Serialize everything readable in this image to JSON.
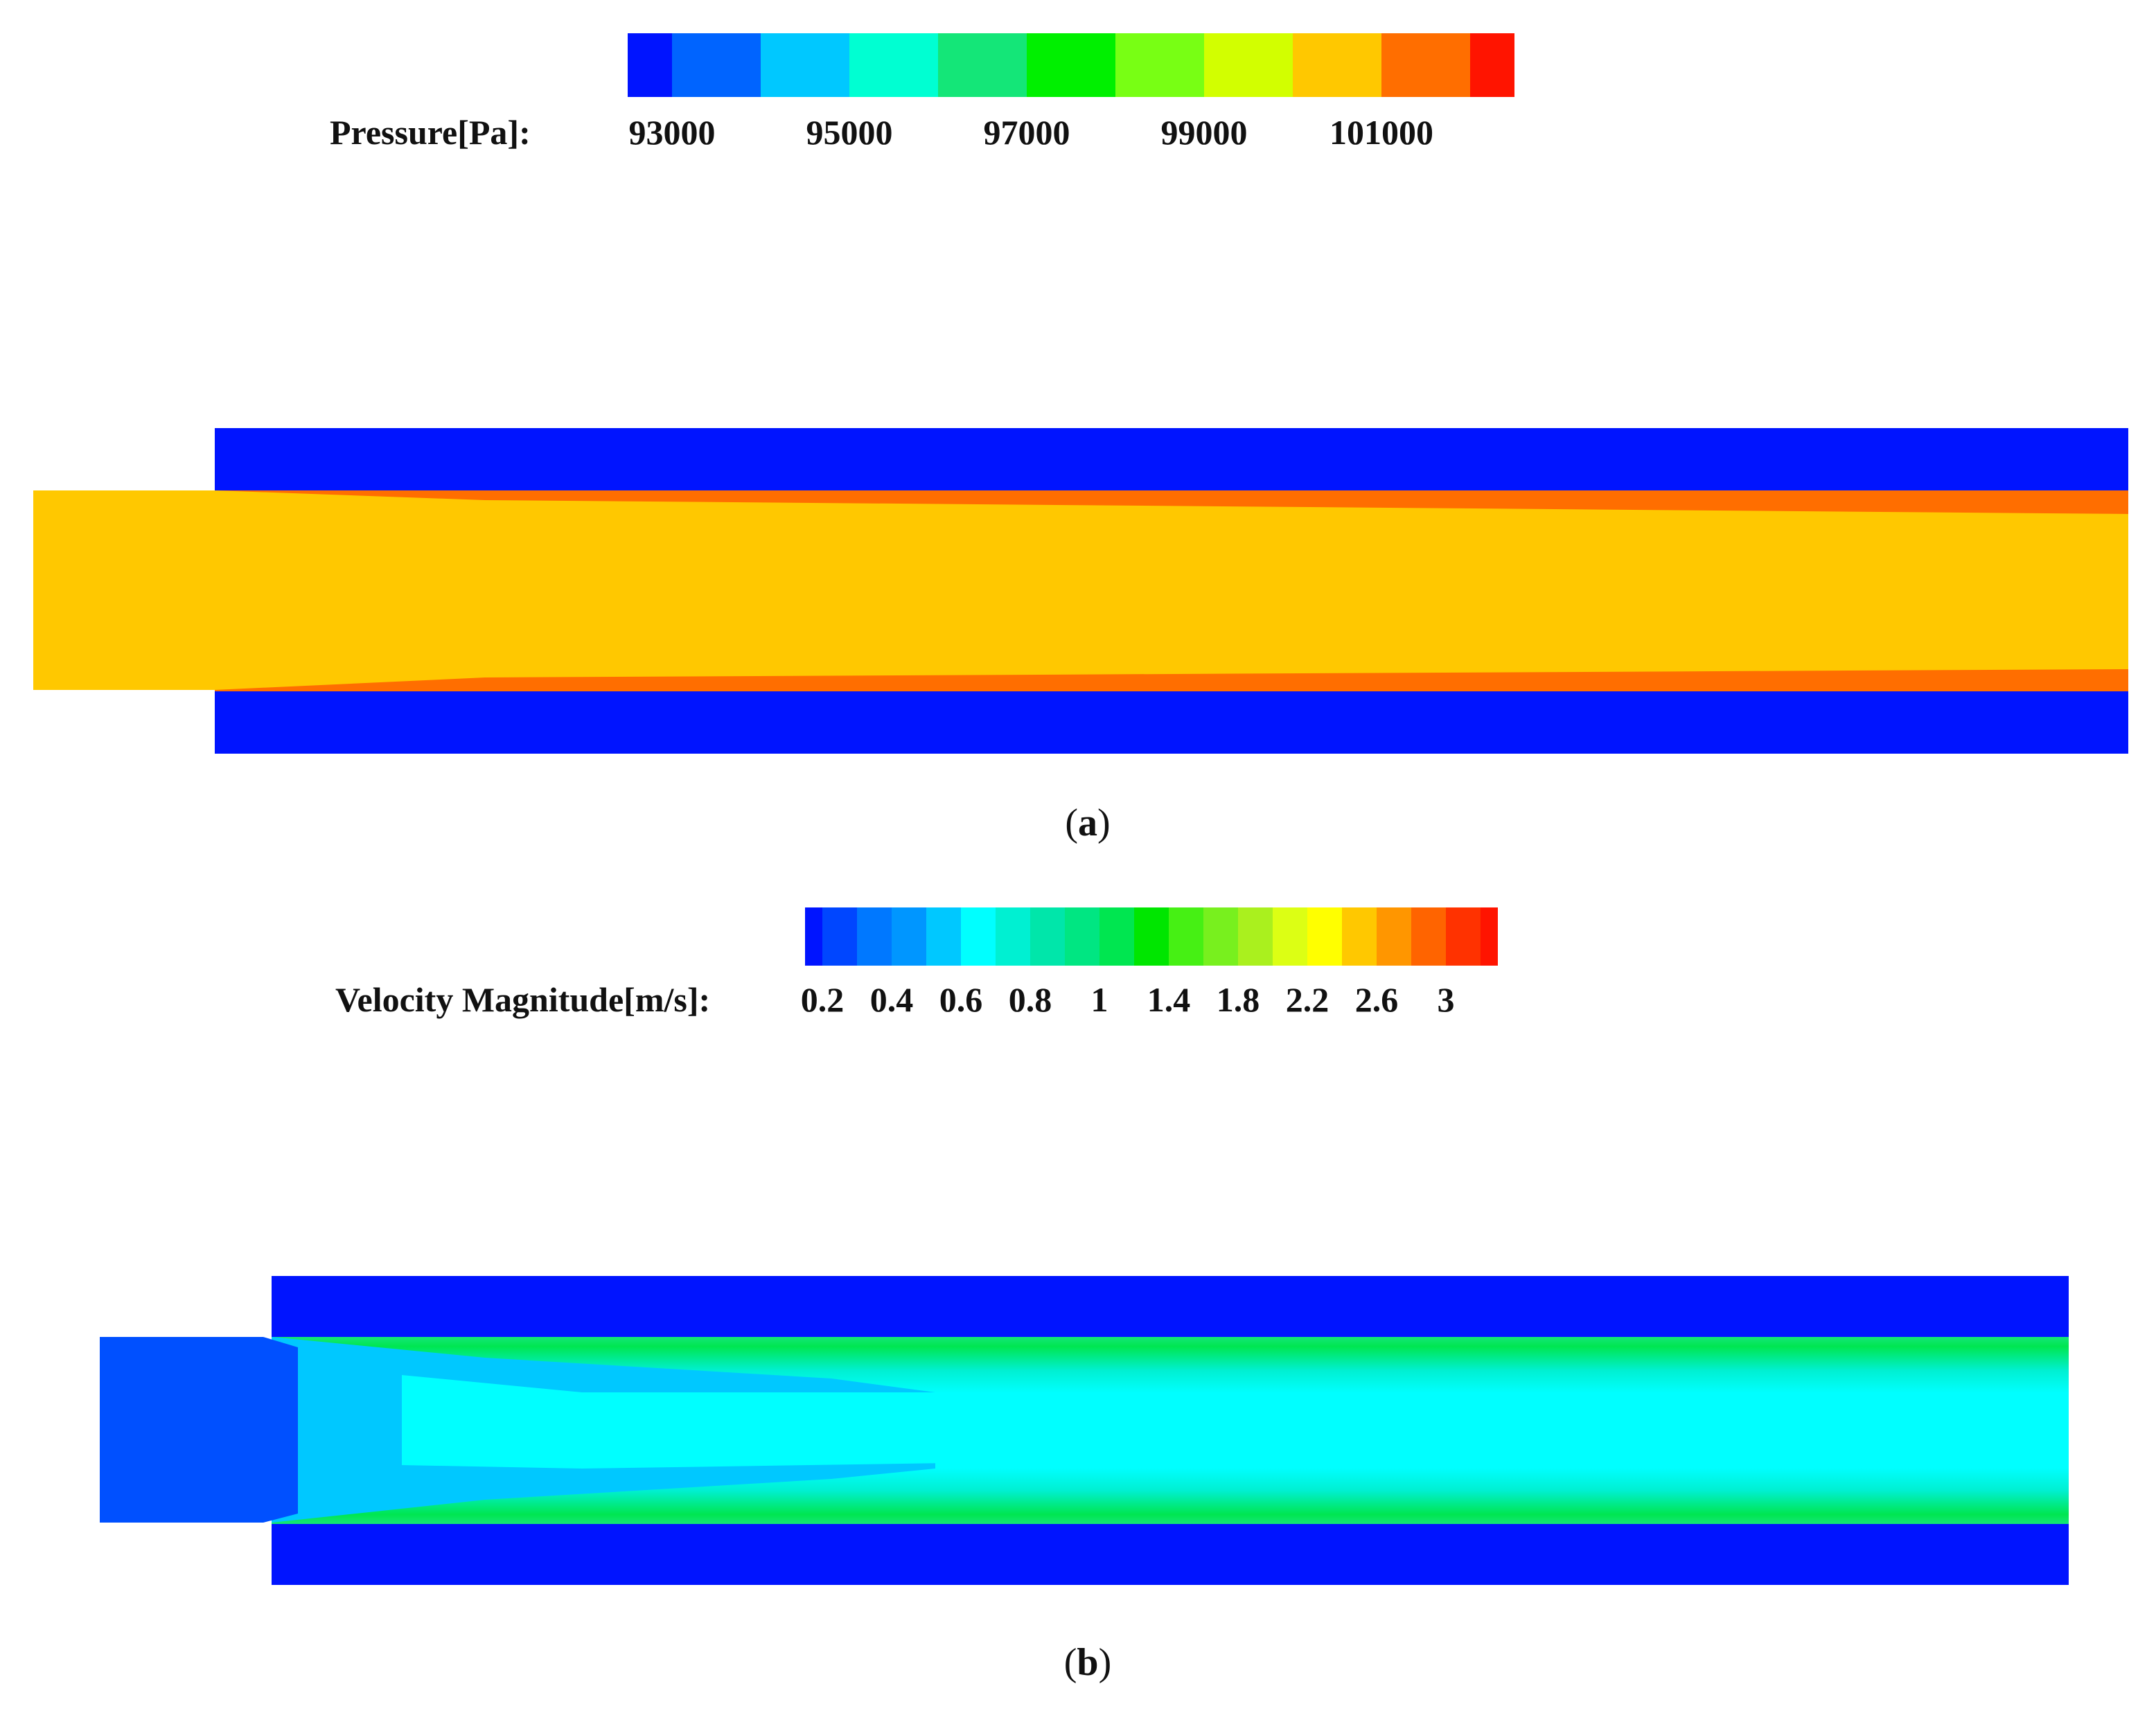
{
  "panel_a": {
    "caption_open": "(",
    "caption_letter": "a",
    "caption_close": ")",
    "legend": {
      "label": "Pressure[Pa]:",
      "ticks": [
        "93000",
        "95000",
        "97000",
        "99000",
        "101000"
      ],
      "colors": [
        "#0014ff",
        "#0064ff",
        "#00c8ff",
        "#00ffd2",
        "#14e678",
        "#00f000",
        "#78ff14",
        "#d2ff00",
        "#ffc800",
        "#ff6e00",
        "#ff1400"
      ]
    },
    "field": {
      "wall_color": "#0014ff",
      "core_color": "#ffc800",
      "boundary_color": "#ff6e00"
    }
  },
  "panel_b": {
    "caption_open": "(",
    "caption_letter": "b",
    "caption_close": ")",
    "legend": {
      "label": "Velocity Magnitude[m/s]:",
      "ticks": [
        "0.2",
        "0.4",
        "0.6",
        "0.8",
        "1",
        "1.4",
        "1.8",
        "2.2",
        "2.6",
        "3"
      ],
      "colors": [
        "#0014ff",
        "#0046ff",
        "#0078ff",
        "#0096ff",
        "#00c8ff",
        "#00ffff",
        "#00f0d2",
        "#00e6aa",
        "#00e682",
        "#00e650",
        "#00e600",
        "#46f014",
        "#78f01e",
        "#aaf01e",
        "#dcff14",
        "#ffff00",
        "#ffc800",
        "#ff9600",
        "#ff6400",
        "#ff3200",
        "#ff1400"
      ]
    },
    "field": {
      "wall_color": "#0014ff",
      "inlet_color": "#0050ff",
      "core_color": "#00ffff",
      "mid_color": "#00c8ff",
      "edge_color": "#14e678"
    }
  }
}
